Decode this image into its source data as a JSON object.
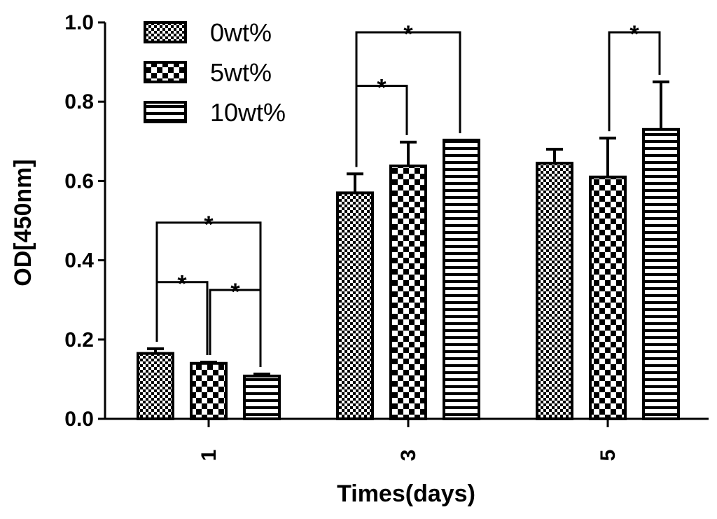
{
  "chart_data": {
    "type": "bar",
    "title": "",
    "xlabel": "Times(days)",
    "ylabel": "OD[450nm]",
    "ylim": [
      0,
      1.0
    ],
    "yticks": [
      "0.0",
      "0.2",
      "0.4",
      "0.6",
      "0.8",
      "1.0"
    ],
    "categories": [
      "1",
      "3",
      "5"
    ],
    "series": [
      {
        "name": "0wt%",
        "pattern": "fine-checker",
        "values": [
          0.165,
          0.57,
          0.645
        ],
        "errors": [
          0.012,
          0.048,
          0.035
        ]
      },
      {
        "name": "5wt%",
        "pattern": "coarse-checker",
        "values": [
          0.14,
          0.638,
          0.61
        ],
        "errors": [
          0.003,
          0.06,
          0.098
        ]
      },
      {
        "name": "10wt%",
        "pattern": "horizontal-lines",
        "values": [
          0.108,
          0.703,
          0.73
        ],
        "errors": [
          0.005,
          0.0,
          0.12
        ]
      }
    ],
    "significance": [
      {
        "category": 0,
        "from": 0,
        "to": 2,
        "label": "*"
      },
      {
        "category": 0,
        "from": 0,
        "to": 1,
        "label": "*"
      },
      {
        "category": 0,
        "from": 1,
        "to": 2,
        "label": "*"
      },
      {
        "category": 1,
        "from": 0,
        "to": 2,
        "label": "*"
      },
      {
        "category": 1,
        "from": 0,
        "to": 1,
        "label": "*"
      },
      {
        "category": 2,
        "from": 1,
        "to": 2,
        "label": "*"
      }
    ],
    "legend_position": "top-left",
    "grid": false
  },
  "colors": {
    "ink": "#000000",
    "fill": "#ffffff"
  }
}
